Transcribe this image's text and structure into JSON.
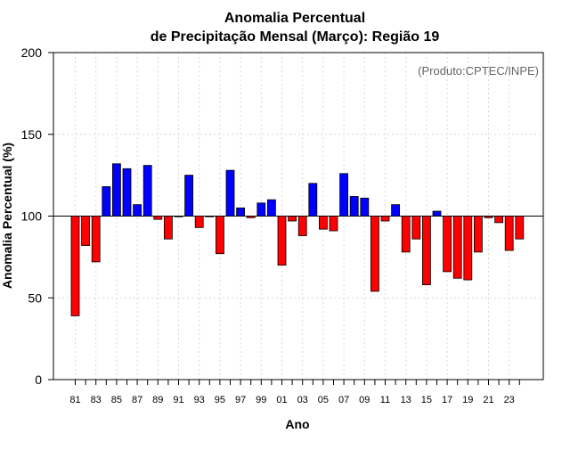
{
  "chart_data": {
    "type": "bar",
    "title_line1": "Anomalia Percentual",
    "title_line2": "de Precipitação Mensal (Março): Região 19",
    "xlabel": "Ano",
    "ylabel": "Anomalia Percentual (%)",
    "credit": "(Produto:CPTEC/INPE)",
    "ylim": [
      0,
      200
    ],
    "yticks": [
      0,
      50,
      100,
      150,
      200
    ],
    "baseline": 100,
    "categories": [
      "81",
      "82",
      "83",
      "84",
      "85",
      "86",
      "87",
      "88",
      "89",
      "90",
      "91",
      "92",
      "93",
      "94",
      "95",
      "96",
      "97",
      "98",
      "99",
      "00",
      "01",
      "02",
      "03",
      "04",
      "05",
      "06",
      "07",
      "08",
      "09",
      "10",
      "11",
      "12",
      "13",
      "14",
      "15",
      "16",
      "17",
      "18",
      "19",
      "20",
      "21",
      "22",
      "23",
      "24"
    ],
    "xtick_labels": [
      "81",
      "83",
      "85",
      "87",
      "89",
      "91",
      "93",
      "95",
      "97",
      "99",
      "01",
      "03",
      "05",
      "07",
      "09",
      "11",
      "13",
      "15",
      "17",
      "19",
      "21",
      "23"
    ],
    "values": [
      39,
      82,
      72,
      118,
      132,
      129,
      107,
      131,
      98,
      86,
      100,
      125,
      93,
      100,
      77,
      128,
      105,
      99,
      108,
      110,
      70,
      97,
      88,
      120,
      92,
      91,
      126,
      112,
      111,
      54,
      97,
      107,
      78,
      86,
      58,
      103,
      66,
      62,
      61,
      78,
      99,
      96,
      79,
      86
    ],
    "colors": {
      "above": "#0000ff",
      "below": "#ff0000",
      "outline": "#000000"
    }
  }
}
